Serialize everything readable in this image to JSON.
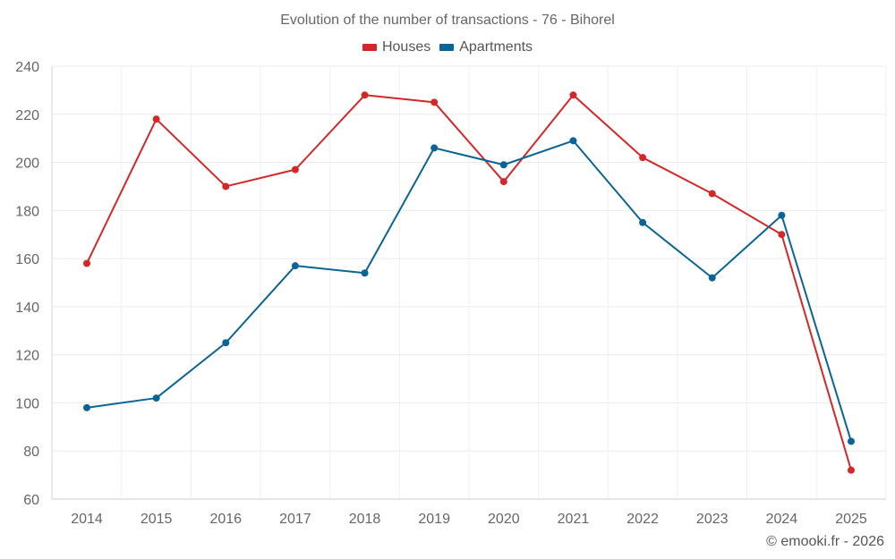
{
  "chart_data": {
    "type": "line",
    "title": "Evolution of the number of transactions - 76 - Bihorel",
    "x": [
      "2014",
      "2015",
      "2016",
      "2017",
      "2018",
      "2019",
      "2020",
      "2021",
      "2022",
      "2023",
      "2024",
      "2025"
    ],
    "series": [
      {
        "name": "Houses",
        "color": "#d62728",
        "values": [
          158,
          218,
          190,
          197,
          228,
          225,
          192,
          228,
          202,
          187,
          170,
          72
        ]
      },
      {
        "name": "Apartments",
        "color": "#0b6496",
        "values": [
          98,
          102,
          125,
          157,
          154,
          206,
          199,
          209,
          175,
          152,
          178,
          84
        ]
      }
    ],
    "ylim": [
      60,
      240
    ],
    "yticks": [
      60,
      80,
      100,
      120,
      140,
      160,
      180,
      200,
      220,
      240
    ],
    "grid": true,
    "legend_position": "top-center",
    "xlabel": "",
    "ylabel": ""
  },
  "credit": "© emooki.fr - 2026"
}
